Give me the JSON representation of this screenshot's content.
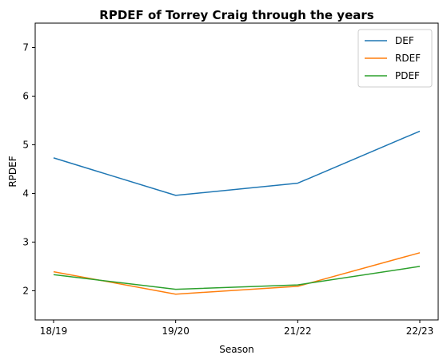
{
  "chart_data": {
    "type": "line",
    "title": "RPDEF of Torrey Craig through the years",
    "xlabel": "Season",
    "ylabel": "RPDEF",
    "categories": [
      "18/19",
      "19/20",
      "21/22",
      "22/23"
    ],
    "ylim": [
      1.4,
      7.5
    ],
    "yticks": [
      2,
      3,
      4,
      5,
      6,
      7
    ],
    "grid": false,
    "legend_position": "top-right",
    "series": [
      {
        "name": "DEF",
        "color": "#1f77b4",
        "values": [
          4.73,
          3.96,
          4.21,
          5.28
        ]
      },
      {
        "name": "RDEF",
        "color": "#ff7f0e",
        "values": [
          2.39,
          1.93,
          2.09,
          2.78
        ]
      },
      {
        "name": "PDEF",
        "color": "#2ca02c",
        "values": [
          2.33,
          2.03,
          2.12,
          2.5
        ]
      }
    ]
  }
}
